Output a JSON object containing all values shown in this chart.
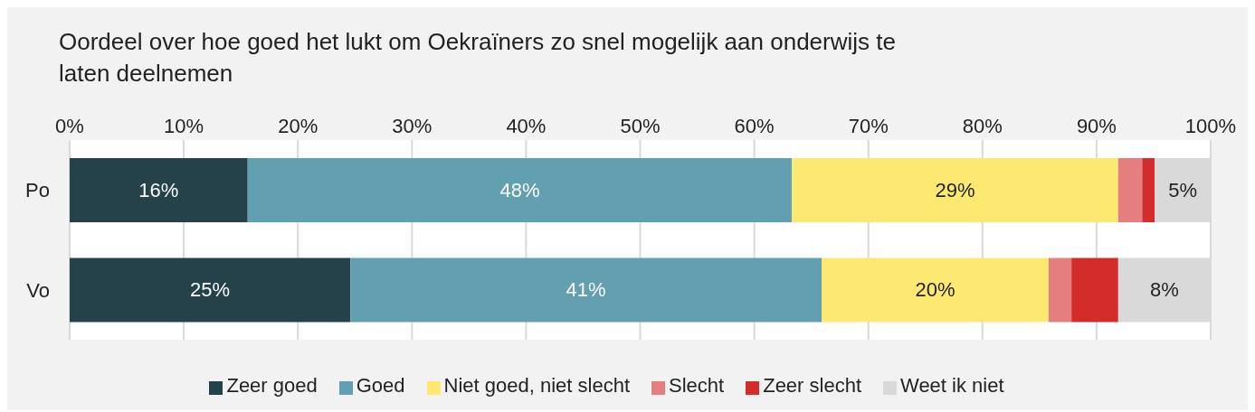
{
  "chart_data": {
    "type": "bar",
    "orientation": "horizontal",
    "stacked": true,
    "title": "Oordeel over hoe goed het lukt om Oekraïners zo snel mogelijk aan onderwijs te laten deelnemen",
    "categories": [
      "Po",
      "Vo"
    ],
    "series": [
      {
        "name": "Zeer goed",
        "color": "#25414a",
        "values": [
          15.6,
          24.6
        ],
        "value_labels": [
          "16%",
          "25%"
        ]
      },
      {
        "name": "Goed",
        "color": "#629fb0",
        "values": [
          47.7,
          41.3
        ],
        "value_labels": [
          "48%",
          "41%"
        ]
      },
      {
        "name": "Niet goed, niet slecht",
        "color": "#fde972",
        "values": [
          28.6,
          19.9
        ],
        "value_labels": [
          "29%",
          "20%"
        ]
      },
      {
        "name": "Slecht",
        "color": "#e57e7e",
        "values": [
          2.1,
          2.0
        ],
        "value_labels": [
          null,
          null
        ]
      },
      {
        "name": "Zeer slecht",
        "color": "#d42b2b",
        "values": [
          1.1,
          4.1
        ],
        "value_labels": [
          null,
          null
        ]
      },
      {
        "name": "Weet ik niet",
        "color": "#d9d9d9",
        "values": [
          4.9,
          8.1
        ],
        "value_labels": [
          "5%",
          "8%"
        ]
      }
    ],
    "xlim": [
      0,
      100
    ],
    "xticks": [
      {
        "value": 0,
        "label": "0%"
      },
      {
        "value": 10,
        "label": "10%"
      },
      {
        "value": 20,
        "label": "20%"
      },
      {
        "value": 30,
        "label": "30%"
      },
      {
        "value": 40,
        "label": "40%"
      },
      {
        "value": 50,
        "label": "50%"
      },
      {
        "value": 60,
        "label": "60%"
      },
      {
        "value": 70,
        "label": "70%"
      },
      {
        "value": 80,
        "label": "80%"
      },
      {
        "value": 90,
        "label": "90%"
      },
      {
        "value": 100,
        "label": "100%"
      }
    ],
    "grid": "x",
    "legend": "bottom"
  }
}
